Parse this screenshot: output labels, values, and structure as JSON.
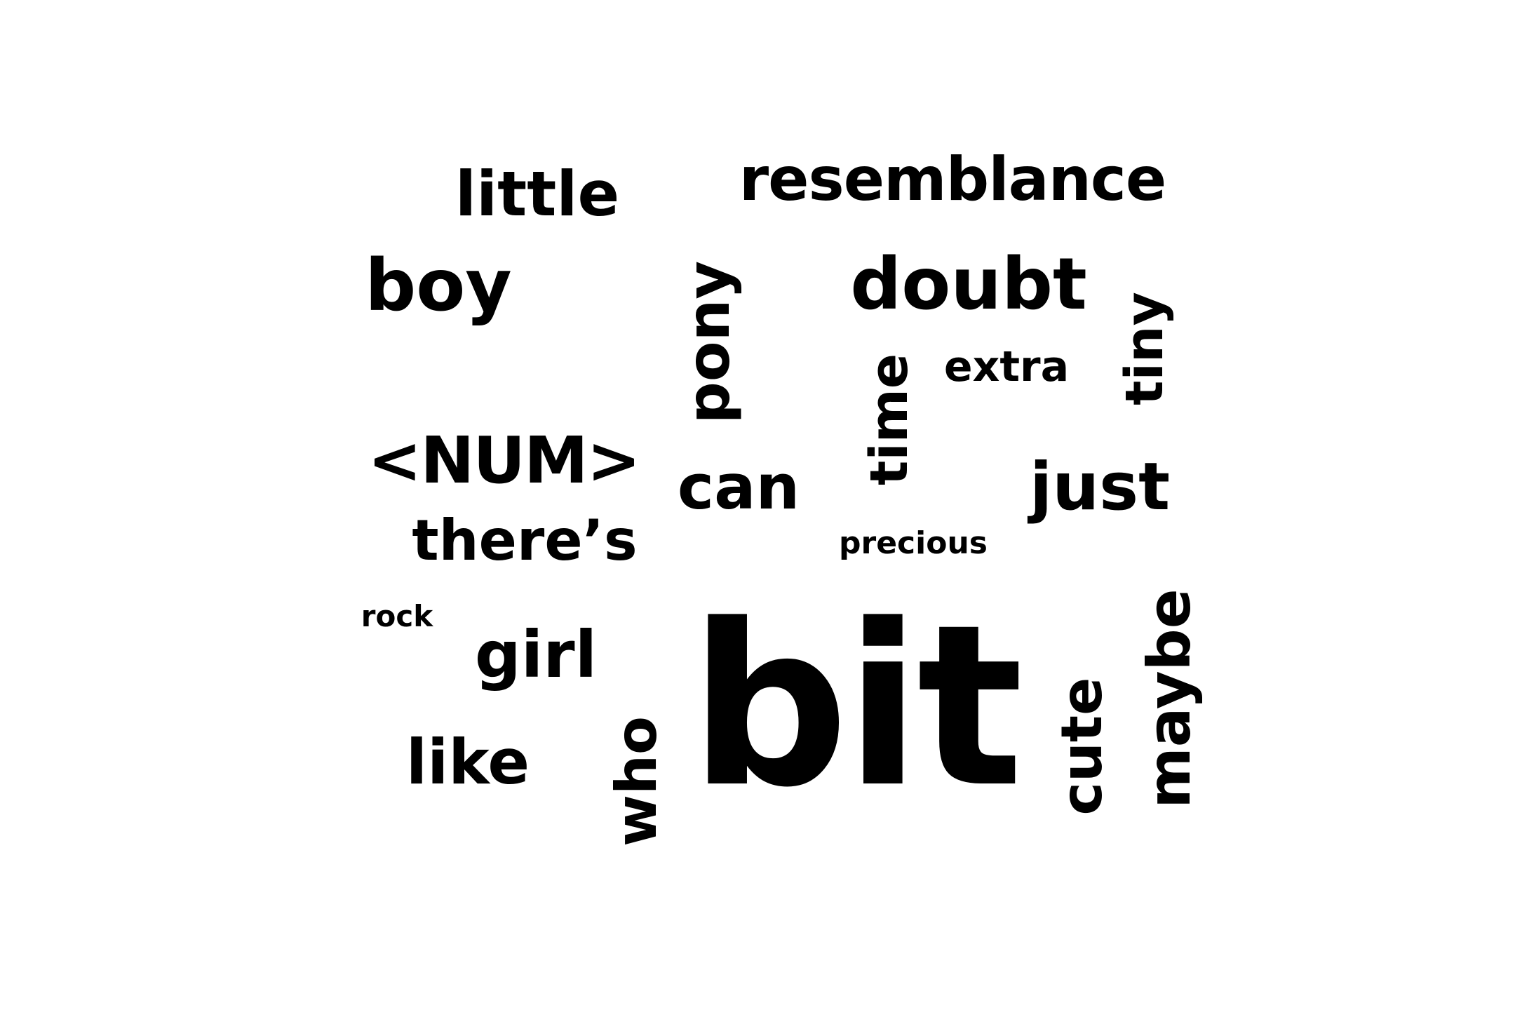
{
  "word_cloud": {
    "text_color": "#000000",
    "background_color": "#ffffff",
    "words": [
      {
        "key": "bit",
        "text": "bit"
      },
      {
        "key": "num",
        "text": "<NUM>"
      },
      {
        "key": "resemblance",
        "text": "resemblance"
      },
      {
        "key": "doubt",
        "text": "doubt"
      },
      {
        "key": "boy",
        "text": "boy"
      },
      {
        "key": "maybe",
        "text": "maybe"
      },
      {
        "key": "pony",
        "text": "pony"
      },
      {
        "key": "just",
        "text": "just"
      },
      {
        "key": "cute",
        "text": "cute"
      },
      {
        "key": "who",
        "text": "who"
      },
      {
        "key": "little",
        "text": "little"
      },
      {
        "key": "can",
        "text": "can"
      },
      {
        "key": "girl",
        "text": "girl"
      },
      {
        "key": "like",
        "text": "like"
      },
      {
        "key": "there_s",
        "text": "there’s"
      },
      {
        "key": "time",
        "text": "time"
      },
      {
        "key": "tiny",
        "text": "tiny"
      },
      {
        "key": "extra",
        "text": "extra"
      },
      {
        "key": "precious",
        "text": "precious"
      },
      {
        "key": "rock",
        "text": "rock"
      }
    ]
  }
}
